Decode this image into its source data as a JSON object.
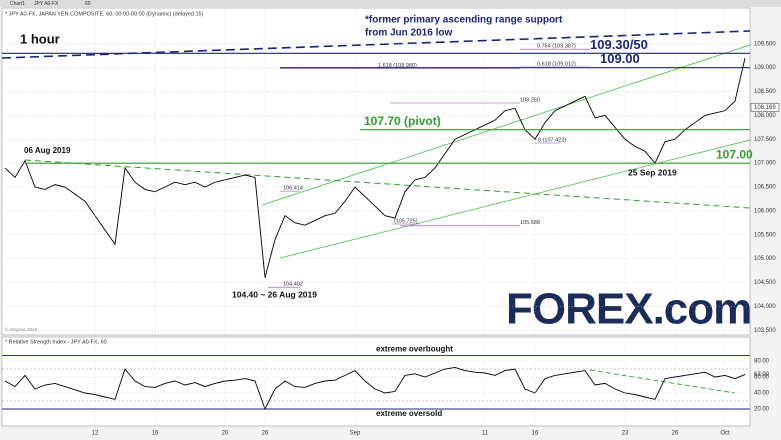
{
  "toolbar": [
    "Chart1",
    "JPY A0-FX",
    "60"
  ],
  "watermark": "FOREX.com",
  "copyright": "© eSignal, 2019",
  "chart_data": [
    {
      "type": "line",
      "title": "* JPY A0-FX, JAPAN YEN COMPOSITE, 60, 00:00-00:00 (Dynamic) (delayed 15)",
      "categories": [
        null,
        null,
        null,
        null,
        null,
        null,
        null,
        null,
        null,
        "12",
        null,
        null,
        null,
        null,
        null,
        "16",
        null,
        null,
        null,
        null,
        null,
        null,
        "20",
        null,
        null,
        null,
        "26",
        null,
        null,
        null,
        null,
        null,
        null,
        null,
        null,
        "Sep",
        null,
        null,
        null,
        null,
        null,
        null,
        null,
        null,
        null,
        null,
        null,
        null,
        "11",
        null,
        null,
        null,
        null,
        "16",
        null,
        null,
        null,
        null,
        null,
        null,
        null,
        null,
        "23",
        null,
        null,
        null,
        null,
        "26",
        null,
        null,
        null,
        null,
        "Oct",
        null,
        null
      ],
      "values": [
        106.9,
        106.7,
        107.05,
        106.5,
        106.45,
        106.55,
        106.5,
        106.35,
        106.2,
        105.9,
        105.6,
        105.3,
        106.9,
        106.6,
        106.45,
        106.4,
        106.5,
        106.6,
        106.55,
        106.6,
        106.5,
        106.6,
        106.65,
        106.7,
        106.75,
        106.7,
        104.6,
        105.4,
        105.9,
        105.75,
        105.7,
        105.8,
        105.9,
        105.95,
        106.2,
        106.5,
        106.3,
        106.1,
        105.9,
        105.85,
        106.4,
        106.65,
        106.7,
        106.9,
        107.2,
        107.5,
        107.6,
        107.7,
        107.8,
        107.9,
        108.1,
        108.15,
        107.7,
        107.5,
        107.85,
        108.1,
        108.2,
        108.3,
        108.4,
        107.95,
        108.0,
        107.75,
        107.5,
        107.35,
        107.25,
        107.0,
        107.45,
        107.5,
        107.7,
        107.85,
        108.0,
        108.05,
        108.1,
        108.3,
        109.2
      ],
      "color": "#000000",
      "ylim": [
        103.4,
        110.25
      ],
      "yticks": [
        {
          "value": 103.5,
          "label": "103.500"
        },
        {
          "value": 104,
          "label": "104.000"
        },
        {
          "value": 104.5,
          "label": "104.500"
        },
        {
          "value": 105,
          "label": "105.000"
        },
        {
          "value": 105.5,
          "label": "105.500"
        },
        {
          "value": 106,
          "label": "106.000"
        },
        {
          "value": 106.5,
          "label": "106.500"
        },
        {
          "value": 107,
          "label": "107.000"
        },
        {
          "value": 107.5,
          "label": "107.500"
        },
        {
          "value": 108,
          "label": "108.000"
        },
        {
          "value": 108.5,
          "label": "108.500"
        },
        {
          "value": 109,
          "label": "109.000"
        },
        {
          "value": 109.5,
          "label": "109.500"
        }
      ],
      "grid": true,
      "last_price": 108.169,
      "levels": [
        {
          "value": 109.3,
          "label": "109.30/50",
          "color": "#1a237e"
        },
        {
          "value": 109.0,
          "label": "109.00",
          "color": "#1a237e"
        },
        {
          "value": 107.7,
          "label": "107.70 (pivot)",
          "color": "#2e9e2e"
        },
        {
          "value": 107.0,
          "label": "107.00",
          "color": "#2e9e2e"
        }
      ],
      "fib_levels": [
        {
          "value": 109.387,
          "label": "0.764 (109.387)"
        },
        {
          "value": 109.012,
          "label": "0.618 (109.012)"
        },
        {
          "value": 108.98,
          "label": "1.618 (108.980)"
        },
        {
          "value": 108.26,
          "label": "108.260"
        },
        {
          "value": 107.422,
          "label": "0 (107.422)"
        },
        {
          "value": 106.414,
          "label": "106.414"
        },
        {
          "value": 105.725,
          "label": "(105.725)"
        },
        {
          "value": 105.688,
          "label": "105.688"
        },
        {
          "value": 104.402,
          "label": "104.402"
        }
      ],
      "annotations": [
        "1 hour",
        "*former primary ascending range support",
        "from Jun 2016 low",
        "06 Aug 2019",
        "104.40 ~ 26 Aug 2019",
        "25 Sep 2019"
      ]
    },
    {
      "type": "line",
      "title": "* Relative Strength Index - JPY A0-FX, 60",
      "values": [
        55,
        48,
        62,
        45,
        50,
        52,
        48,
        44,
        40,
        38,
        35,
        32,
        70,
        55,
        48,
        47,
        52,
        55,
        50,
        53,
        48,
        52,
        55,
        56,
        58,
        55,
        20,
        45,
        55,
        48,
        47,
        52,
        55,
        56,
        62,
        68,
        55,
        45,
        40,
        42,
        62,
        64,
        60,
        65,
        70,
        72,
        68,
        66,
        65,
        62,
        68,
        70,
        45,
        40,
        58,
        62,
        64,
        66,
        68,
        50,
        52,
        45,
        40,
        38,
        35,
        32,
        58,
        60,
        62,
        64,
        66,
        60,
        62,
        58,
        63
      ],
      "color": "#000000",
      "ylim": [
        0,
        100
      ],
      "yticks": [
        {
          "value": 20,
          "label": "20.00"
        },
        {
          "value": 40,
          "label": "40.00"
        },
        {
          "value": 60,
          "label": "60.00"
        },
        {
          "value": 80,
          "label": "80.00"
        }
      ],
      "last_label": "63.00",
      "guides": [
        70,
        30
      ],
      "levels": [
        {
          "value": 87,
          "label": "extreme overbought",
          "color": "#1a237e"
        },
        {
          "value": 20,
          "label": "extreme oversold",
          "color": "#1a237e"
        }
      ]
    }
  ]
}
